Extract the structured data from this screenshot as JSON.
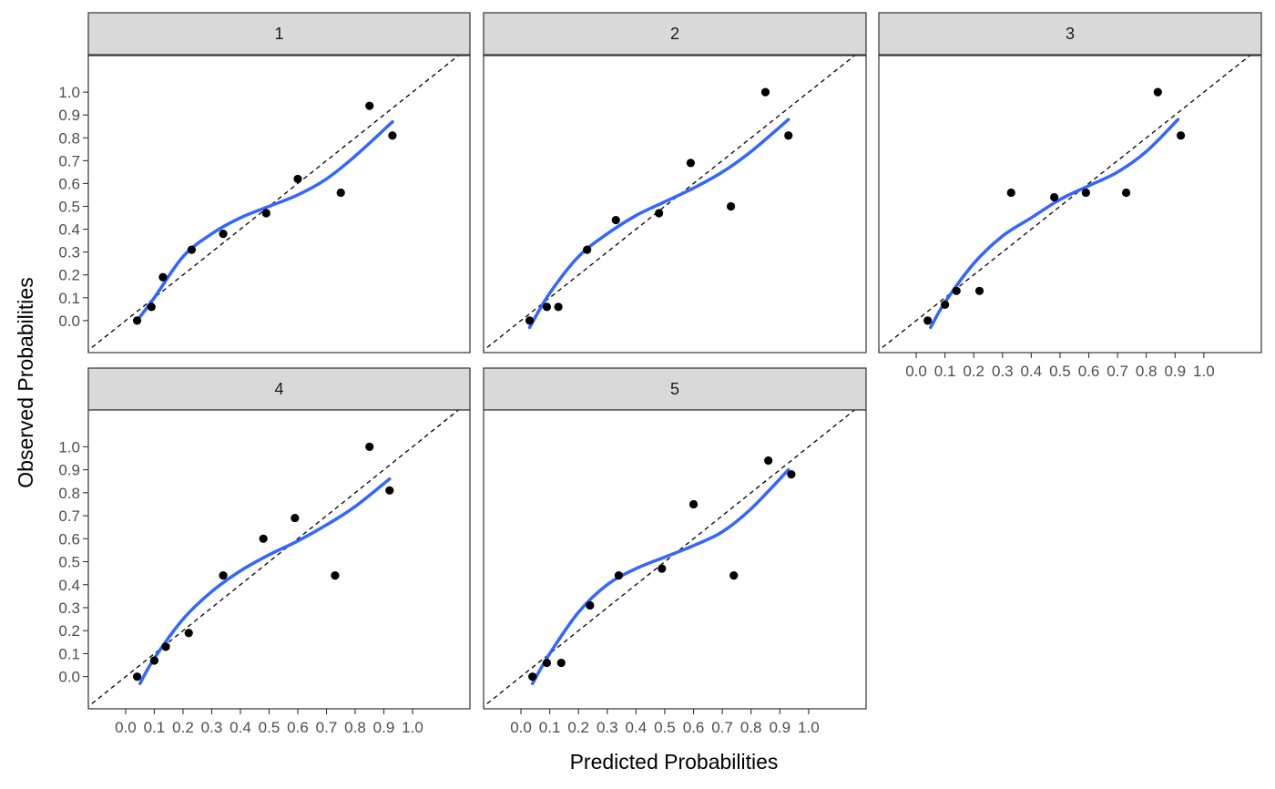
{
  "chart_data": {
    "type": "scatter",
    "xlabel": "Predicted Probabilities",
    "ylabel": "Observed Probabilities",
    "xlim": [
      -0.13,
      1.2
    ],
    "ylim": [
      -0.14,
      1.16
    ],
    "xticks": [
      0.0,
      0.1,
      0.2,
      0.3,
      0.4,
      0.5,
      0.6,
      0.7,
      0.8,
      0.9,
      1.0
    ],
    "yticks": [
      0.0,
      0.1,
      0.2,
      0.3,
      0.4,
      0.5,
      0.6,
      0.7,
      0.8,
      0.9,
      1.0
    ],
    "tick_labels": [
      "0.0",
      "0.1",
      "0.2",
      "0.3",
      "0.4",
      "0.5",
      "0.6",
      "0.7",
      "0.8",
      "0.9",
      "1.0"
    ],
    "reference_line": "y = x (dashed)",
    "smooth_color": "#3366FF",
    "point_color": "#000000",
    "strip_fill": "#D9D9D9",
    "panels": [
      {
        "label": "1",
        "points": [
          [
            0.04,
            0.0
          ],
          [
            0.09,
            0.06
          ],
          [
            0.13,
            0.19
          ],
          [
            0.23,
            0.31
          ],
          [
            0.34,
            0.38
          ],
          [
            0.49,
            0.47
          ],
          [
            0.6,
            0.62
          ],
          [
            0.75,
            0.56
          ],
          [
            0.85,
            0.94
          ],
          [
            0.93,
            0.81
          ]
        ],
        "smooth": [
          [
            0.04,
            0.0
          ],
          [
            0.1,
            0.1
          ],
          [
            0.2,
            0.28
          ],
          [
            0.3,
            0.38
          ],
          [
            0.4,
            0.45
          ],
          [
            0.5,
            0.5
          ],
          [
            0.6,
            0.55
          ],
          [
            0.7,
            0.62
          ],
          [
            0.8,
            0.72
          ],
          [
            0.93,
            0.87
          ]
        ]
      },
      {
        "label": "2",
        "points": [
          [
            0.03,
            0.0
          ],
          [
            0.09,
            0.06
          ],
          [
            0.13,
            0.06
          ],
          [
            0.23,
            0.31
          ],
          [
            0.33,
            0.44
          ],
          [
            0.48,
            0.47
          ],
          [
            0.59,
            0.69
          ],
          [
            0.73,
            0.5
          ],
          [
            0.85,
            1.0
          ],
          [
            0.93,
            0.81
          ]
        ],
        "smooth": [
          [
            0.03,
            -0.03
          ],
          [
            0.1,
            0.12
          ],
          [
            0.2,
            0.28
          ],
          [
            0.3,
            0.38
          ],
          [
            0.4,
            0.46
          ],
          [
            0.5,
            0.52
          ],
          [
            0.6,
            0.58
          ],
          [
            0.7,
            0.65
          ],
          [
            0.8,
            0.74
          ],
          [
            0.93,
            0.88
          ]
        ]
      },
      {
        "label": "3",
        "points": [
          [
            0.04,
            0.0
          ],
          [
            0.1,
            0.07
          ],
          [
            0.14,
            0.13
          ],
          [
            0.22,
            0.13
          ],
          [
            0.33,
            0.56
          ],
          [
            0.48,
            0.54
          ],
          [
            0.59,
            0.56
          ],
          [
            0.73,
            0.56
          ],
          [
            0.84,
            1.0
          ],
          [
            0.92,
            0.81
          ]
        ],
        "smooth": [
          [
            0.05,
            -0.03
          ],
          [
            0.1,
            0.08
          ],
          [
            0.2,
            0.25
          ],
          [
            0.3,
            0.37
          ],
          [
            0.4,
            0.45
          ],
          [
            0.5,
            0.53
          ],
          [
            0.6,
            0.59
          ],
          [
            0.7,
            0.65
          ],
          [
            0.8,
            0.74
          ],
          [
            0.91,
            0.88
          ]
        ]
      },
      {
        "label": "4",
        "points": [
          [
            0.04,
            0.0
          ],
          [
            0.1,
            0.07
          ],
          [
            0.14,
            0.13
          ],
          [
            0.22,
            0.19
          ],
          [
            0.34,
            0.44
          ],
          [
            0.48,
            0.6
          ],
          [
            0.59,
            0.69
          ],
          [
            0.73,
            0.44
          ],
          [
            0.85,
            1.0
          ],
          [
            0.92,
            0.81
          ]
        ],
        "smooth": [
          [
            0.05,
            -0.03
          ],
          [
            0.1,
            0.08
          ],
          [
            0.2,
            0.25
          ],
          [
            0.3,
            0.37
          ],
          [
            0.4,
            0.46
          ],
          [
            0.5,
            0.53
          ],
          [
            0.6,
            0.59
          ],
          [
            0.7,
            0.66
          ],
          [
            0.8,
            0.74
          ],
          [
            0.92,
            0.86
          ]
        ]
      },
      {
        "label": "5",
        "points": [
          [
            0.04,
            0.0
          ],
          [
            0.09,
            0.06
          ],
          [
            0.14,
            0.06
          ],
          [
            0.24,
            0.31
          ],
          [
            0.34,
            0.44
          ],
          [
            0.49,
            0.47
          ],
          [
            0.6,
            0.75
          ],
          [
            0.74,
            0.44
          ],
          [
            0.86,
            0.94
          ],
          [
            0.94,
            0.88
          ]
        ],
        "smooth": [
          [
            0.04,
            -0.03
          ],
          [
            0.1,
            0.1
          ],
          [
            0.2,
            0.28
          ],
          [
            0.3,
            0.4
          ],
          [
            0.4,
            0.47
          ],
          [
            0.5,
            0.52
          ],
          [
            0.6,
            0.57
          ],
          [
            0.7,
            0.63
          ],
          [
            0.8,
            0.73
          ],
          [
            0.93,
            0.9
          ]
        ]
      }
    ]
  }
}
